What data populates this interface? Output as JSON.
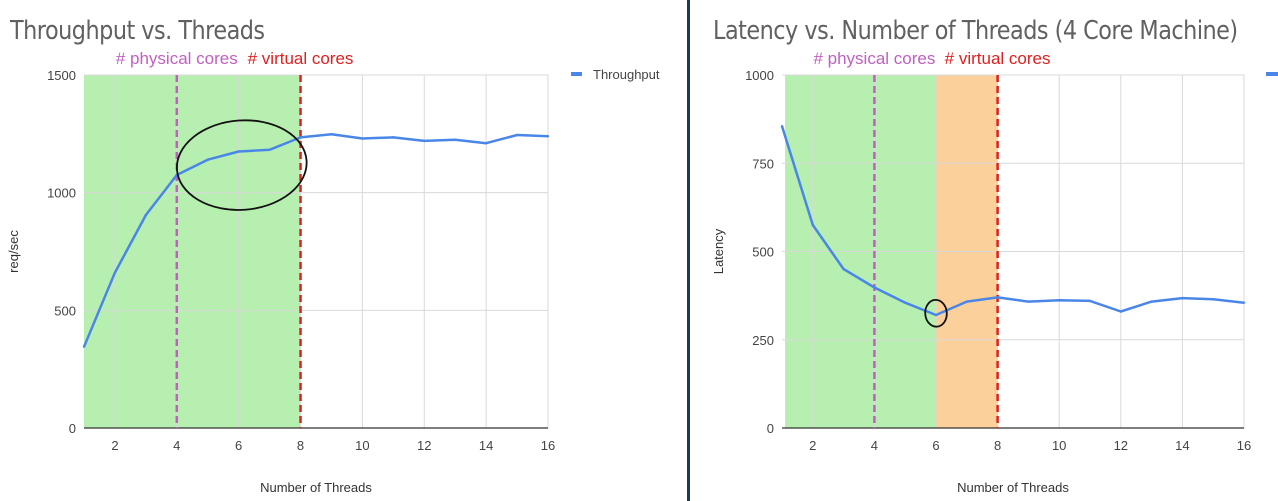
{
  "chart_data": [
    {
      "type": "line",
      "title": "Throughput vs. Threads",
      "xlabel": "Number of Threads",
      "ylabel": "req/sec",
      "xlim": [
        1,
        16
      ],
      "ylim": [
        0,
        1500
      ],
      "xticks": [
        2,
        4,
        6,
        8,
        10,
        12,
        14,
        16
      ],
      "yticks": [
        0,
        500,
        1000,
        1500
      ],
      "grid": true,
      "legend": "top-right",
      "series": [
        {
          "name": "Throughput",
          "color": "#4a86e8",
          "x": [
            1,
            2,
            3,
            4,
            5,
            6,
            7,
            8,
            9,
            10,
            11,
            12,
            13,
            14,
            15,
            16
          ],
          "y": [
            345,
            660,
            905,
            1075,
            1140,
            1175,
            1182,
            1235,
            1248,
            1230,
            1235,
            1220,
            1225,
            1210,
            1245,
            1240
          ]
        }
      ],
      "shaded_regions": [
        {
          "from": 1,
          "to": 8,
          "color": "#b7efb0"
        }
      ],
      "vlines": [
        {
          "x": 4,
          "label": "# physical cores",
          "color": "#c060c0"
        },
        {
          "x": 8,
          "label": "# virtual cores",
          "color": "#e02020"
        }
      ],
      "annotations": [
        {
          "shape": "ellipse",
          "cx": 6.1,
          "cy": 1117,
          "rx": 2.1,
          "ry": 190,
          "color": "#111111"
        }
      ]
    },
    {
      "type": "line",
      "title": "Latency vs. Number of Threads (4 Core Machine)",
      "xlabel": "Number of Threads",
      "ylabel": "Latency",
      "xlim": [
        1,
        16
      ],
      "ylim": [
        0,
        1000
      ],
      "xticks": [
        2,
        4,
        6,
        8,
        10,
        12,
        14,
        16
      ],
      "yticks": [
        0,
        250,
        500,
        750,
        1000
      ],
      "grid": true,
      "legend": "top-right",
      "series": [
        {
          "name": "",
          "color": "#4a86e8",
          "x": [
            1,
            2,
            3,
            4,
            5,
            6,
            7,
            8,
            9,
            10,
            11,
            12,
            13,
            14,
            15,
            16
          ],
          "y": [
            855,
            575,
            450,
            398,
            355,
            320,
            358,
            370,
            358,
            362,
            360,
            330,
            358,
            368,
            365,
            355
          ]
        }
      ],
      "shaded_regions": [
        {
          "from": 1.1,
          "to": 6,
          "color": "#b7efb0"
        },
        {
          "from": 6,
          "to": 8,
          "color": "#fcd09a"
        }
      ],
      "vlines": [
        {
          "x": 4,
          "label": "# physical cores",
          "color": "#c060c0"
        },
        {
          "x": 8,
          "label": "# virtual cores",
          "color": "#e02020"
        }
      ],
      "annotations": [
        {
          "shape": "ellipse",
          "cx": 6.0,
          "cy": 325,
          "rx": 0.35,
          "ry": 38,
          "color": "#111111"
        }
      ]
    }
  ]
}
